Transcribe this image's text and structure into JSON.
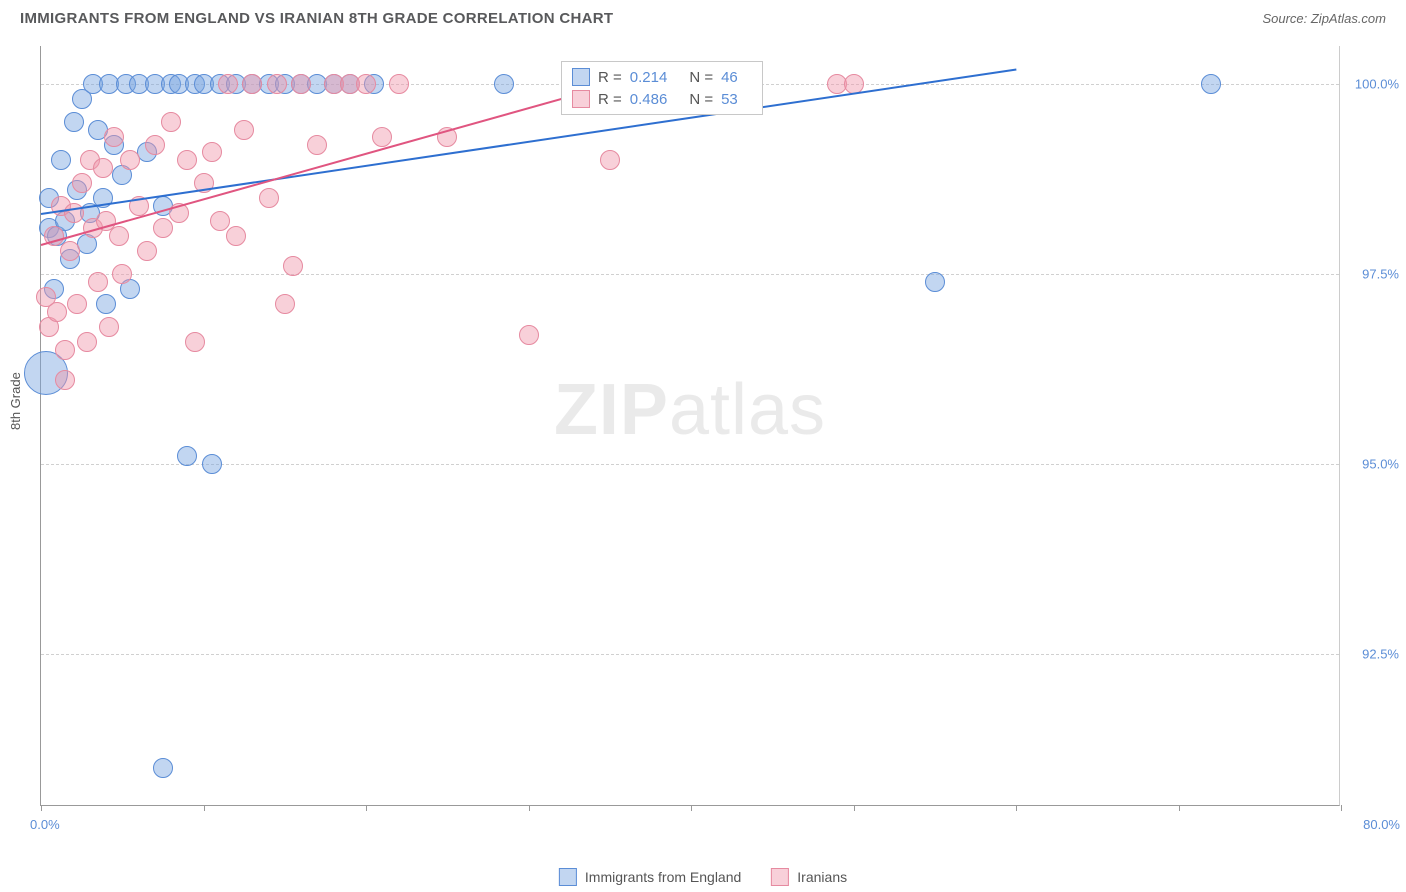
{
  "header": {
    "title": "IMMIGRANTS FROM ENGLAND VS IRANIAN 8TH GRADE CORRELATION CHART",
    "source_label": "Source: ",
    "source_value": "ZipAtlas.com"
  },
  "chart": {
    "type": "scatter",
    "y_axis_label": "8th Grade",
    "watermark_zip": "ZIP",
    "watermark_atlas": "atlas",
    "xlim": [
      0,
      80
    ],
    "ylim": [
      90.5,
      100.5
    ],
    "x_start_label": "0.0%",
    "x_end_label": "80.0%",
    "x_ticks": [
      0,
      10,
      20,
      30,
      40,
      50,
      60,
      70,
      80
    ],
    "y_ticks": [
      {
        "value": 92.5,
        "label": "92.5%"
      },
      {
        "value": 95.0,
        "label": "95.0%"
      },
      {
        "value": 97.5,
        "label": "97.5%"
      },
      {
        "value": 100.0,
        "label": "100.0%"
      }
    ],
    "grid_color": "#d0d0d0",
    "background_color": "#ffffff",
    "series": [
      {
        "name": "Immigrants from England",
        "fill_color": "rgba(120,165,225,0.45)",
        "stroke_color": "#5b8dd6",
        "marker_radius": 10,
        "trend_line_color": "#2e6fd0",
        "trend_start": {
          "x": 0,
          "y": 98.3
        },
        "trend_end": {
          "x": 60,
          "y": 100.2
        },
        "r_value": "0.214",
        "n_value": "46",
        "points": [
          {
            "x": 0.3,
            "y": 96.2,
            "r": 22
          },
          {
            "x": 0.5,
            "y": 98.1
          },
          {
            "x": 0.5,
            "y": 98.5
          },
          {
            "x": 0.8,
            "y": 97.3
          },
          {
            "x": 1.0,
            "y": 98.0
          },
          {
            "x": 1.2,
            "y": 99.0
          },
          {
            "x": 1.5,
            "y": 98.2
          },
          {
            "x": 1.8,
            "y": 97.7
          },
          {
            "x": 2.0,
            "y": 99.5
          },
          {
            "x": 2.2,
            "y": 98.6
          },
          {
            "x": 2.5,
            "y": 99.8
          },
          {
            "x": 2.8,
            "y": 97.9
          },
          {
            "x": 3.0,
            "y": 98.3
          },
          {
            "x": 3.2,
            "y": 100.0
          },
          {
            "x": 3.5,
            "y": 99.4
          },
          {
            "x": 3.8,
            "y": 98.5
          },
          {
            "x": 4.0,
            "y": 97.1
          },
          {
            "x": 4.2,
            "y": 100.0
          },
          {
            "x": 4.5,
            "y": 99.2
          },
          {
            "x": 5.0,
            "y": 98.8
          },
          {
            "x": 5.2,
            "y": 100.0
          },
          {
            "x": 5.5,
            "y": 97.3
          },
          {
            "x": 6.0,
            "y": 100.0
          },
          {
            "x": 6.5,
            "y": 99.1
          },
          {
            "x": 7.0,
            "y": 100.0
          },
          {
            "x": 7.5,
            "y": 98.4
          },
          {
            "x": 8.0,
            "y": 100.0
          },
          {
            "x": 8.5,
            "y": 100.0
          },
          {
            "x": 9.0,
            "y": 95.1
          },
          {
            "x": 9.5,
            "y": 100.0
          },
          {
            "x": 10.0,
            "y": 100.0
          },
          {
            "x": 10.5,
            "y": 95.0
          },
          {
            "x": 11.0,
            "y": 100.0
          },
          {
            "x": 12.0,
            "y": 100.0
          },
          {
            "x": 13.0,
            "y": 100.0
          },
          {
            "x": 14.0,
            "y": 100.0
          },
          {
            "x": 15.0,
            "y": 100.0
          },
          {
            "x": 16.0,
            "y": 100.0
          },
          {
            "x": 17.0,
            "y": 100.0
          },
          {
            "x": 18.0,
            "y": 100.0
          },
          {
            "x": 19.0,
            "y": 100.0
          },
          {
            "x": 20.5,
            "y": 100.0
          },
          {
            "x": 28.5,
            "y": 100.0
          },
          {
            "x": 55.0,
            "y": 97.4
          },
          {
            "x": 72.0,
            "y": 100.0
          },
          {
            "x": 7.5,
            "y": 91.0
          }
        ]
      },
      {
        "name": "Iranians",
        "fill_color": "rgba(240,150,170,0.45)",
        "stroke_color": "#e68aa0",
        "marker_radius": 10,
        "trend_line_color": "#e05580",
        "trend_start": {
          "x": 0,
          "y": 97.9
        },
        "trend_end": {
          "x": 35,
          "y": 100.0
        },
        "r_value": "0.486",
        "n_value": "53",
        "points": [
          {
            "x": 0.3,
            "y": 97.2
          },
          {
            "x": 0.5,
            "y": 96.8
          },
          {
            "x": 0.8,
            "y": 98.0
          },
          {
            "x": 1.0,
            "y": 97.0
          },
          {
            "x": 1.2,
            "y": 98.4
          },
          {
            "x": 1.5,
            "y": 96.1
          },
          {
            "x": 1.5,
            "y": 96.5
          },
          {
            "x": 1.8,
            "y": 97.8
          },
          {
            "x": 2.0,
            "y": 98.3
          },
          {
            "x": 2.2,
            "y": 97.1
          },
          {
            "x": 2.5,
            "y": 98.7
          },
          {
            "x": 2.8,
            "y": 96.6
          },
          {
            "x": 3.0,
            "y": 99.0
          },
          {
            "x": 3.2,
            "y": 98.1
          },
          {
            "x": 3.5,
            "y": 97.4
          },
          {
            "x": 3.8,
            "y": 98.9
          },
          {
            "x": 4.0,
            "y": 98.2
          },
          {
            "x": 4.2,
            "y": 96.8
          },
          {
            "x": 4.5,
            "y": 99.3
          },
          {
            "x": 4.8,
            "y": 98.0
          },
          {
            "x": 5.0,
            "y": 97.5
          },
          {
            "x": 5.5,
            "y": 99.0
          },
          {
            "x": 6.0,
            "y": 98.4
          },
          {
            "x": 6.5,
            "y": 97.8
          },
          {
            "x": 7.0,
            "y": 99.2
          },
          {
            "x": 7.5,
            "y": 98.1
          },
          {
            "x": 8.0,
            "y": 99.5
          },
          {
            "x": 8.5,
            "y": 98.3
          },
          {
            "x": 9.0,
            "y": 99.0
          },
          {
            "x": 9.5,
            "y": 96.6
          },
          {
            "x": 10.0,
            "y": 98.7
          },
          {
            "x": 10.5,
            "y": 99.1
          },
          {
            "x": 11.0,
            "y": 98.2
          },
          {
            "x": 11.5,
            "y": 100.0
          },
          {
            "x": 12.0,
            "y": 98.0
          },
          {
            "x": 12.5,
            "y": 99.4
          },
          {
            "x": 13.0,
            "y": 100.0
          },
          {
            "x": 14.0,
            "y": 98.5
          },
          {
            "x": 14.5,
            "y": 100.0
          },
          {
            "x": 15.0,
            "y": 97.1
          },
          {
            "x": 15.5,
            "y": 97.6
          },
          {
            "x": 16.0,
            "y": 100.0
          },
          {
            "x": 17.0,
            "y": 99.2
          },
          {
            "x": 18.0,
            "y": 100.0
          },
          {
            "x": 19.0,
            "y": 100.0
          },
          {
            "x": 20.0,
            "y": 100.0
          },
          {
            "x": 21.0,
            "y": 99.3
          },
          {
            "x": 22.0,
            "y": 100.0
          },
          {
            "x": 25.0,
            "y": 99.3
          },
          {
            "x": 30.0,
            "y": 96.7
          },
          {
            "x": 35.0,
            "y": 99.0
          },
          {
            "x": 49.0,
            "y": 100.0
          },
          {
            "x": 50.0,
            "y": 100.0
          }
        ]
      }
    ],
    "stat_box": {
      "r_label": "R  = ",
      "n_label": "N  = "
    },
    "legend": {
      "items": [
        "Immigrants from England",
        "Iranians"
      ]
    }
  }
}
